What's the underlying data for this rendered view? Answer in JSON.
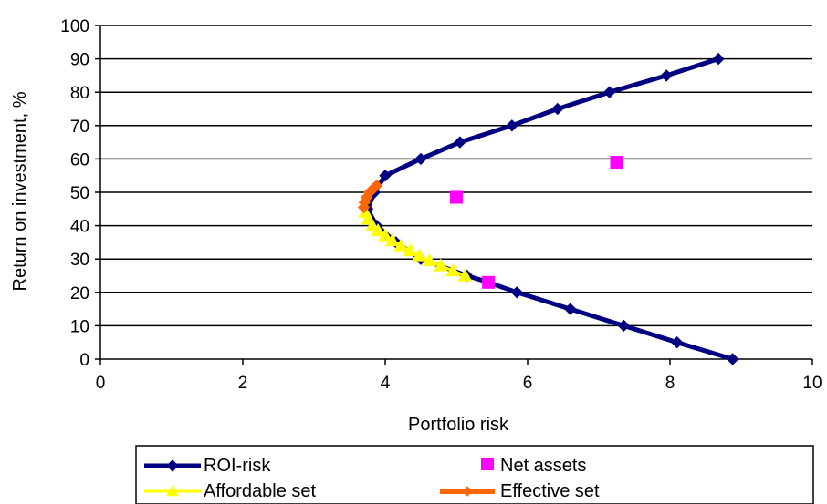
{
  "chart_data": {
    "type": "scatter",
    "title": "",
    "xlabel": "Portfolio risk",
    "ylabel": "Return on investment,  %",
    "xlim": [
      0,
      10
    ],
    "ylim": [
      0,
      100
    ],
    "x_ticks": [
      "0",
      "2",
      "4",
      "6",
      "8",
      "10"
    ],
    "y_ticks": [
      "0",
      "10",
      "20",
      "30",
      "40",
      "50",
      "60",
      "70",
      "80",
      "90",
      "100"
    ],
    "grid": "horizontal",
    "legend_position": "bottom",
    "series": [
      {
        "name": "ROI-risk",
        "kind": "line-diamond",
        "color": "#000080",
        "points": [
          [
            8.88,
            0
          ],
          [
            8.1,
            5
          ],
          [
            7.35,
            10
          ],
          [
            6.6,
            15
          ],
          [
            5.85,
            20
          ],
          [
            5.45,
            23
          ],
          [
            5.15,
            25
          ],
          [
            4.5,
            30
          ],
          [
            4.15,
            35
          ],
          [
            3.88,
            40
          ],
          [
            3.75,
            45
          ],
          [
            3.85,
            50
          ],
          [
            4.0,
            55
          ],
          [
            4.5,
            60
          ],
          [
            5.05,
            65
          ],
          [
            5.78,
            70
          ],
          [
            6.42,
            75
          ],
          [
            7.15,
            80
          ],
          [
            7.95,
            85
          ],
          [
            8.68,
            90
          ]
        ]
      },
      {
        "name": "Net assets",
        "kind": "marker-square",
        "color": "#ff00ff",
        "points": [
          [
            5.0,
            48.5
          ],
          [
            7.25,
            59
          ],
          [
            5.45,
            23
          ]
        ]
      },
      {
        "name": "Affordable set",
        "kind": "line-triangle",
        "color": "#ffff00",
        "points": [
          [
            3.72,
            44
          ],
          [
            3.76,
            42
          ],
          [
            3.82,
            40
          ],
          [
            3.9,
            38.5
          ],
          [
            4.0,
            37
          ],
          [
            4.1,
            35.5
          ],
          [
            4.22,
            34
          ],
          [
            4.35,
            32.5
          ],
          [
            4.48,
            31
          ],
          [
            4.62,
            29.5
          ],
          [
            4.78,
            28
          ],
          [
            4.95,
            26.5
          ],
          [
            5.12,
            25
          ]
        ]
      },
      {
        "name": "Effective set",
        "kind": "line-diamond",
        "color": "#ff6600",
        "points": [
          [
            3.7,
            45.5
          ],
          [
            3.71,
            47
          ],
          [
            3.74,
            48.5
          ],
          [
            3.78,
            50
          ],
          [
            3.83,
            51
          ],
          [
            3.88,
            52
          ]
        ]
      }
    ]
  }
}
